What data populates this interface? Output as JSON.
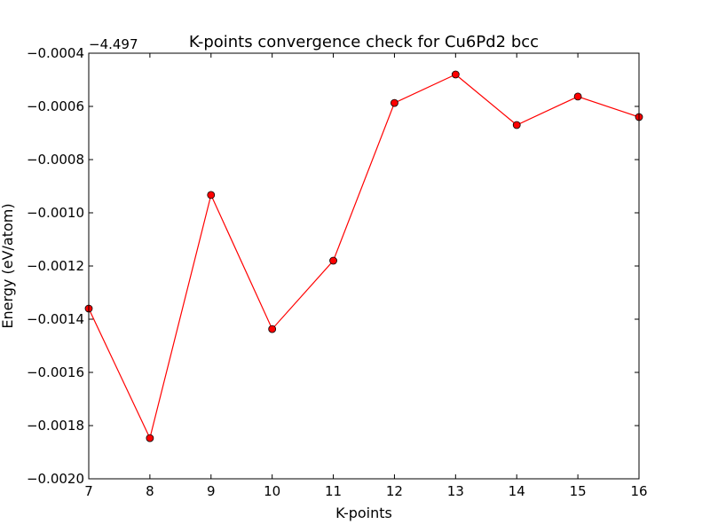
{
  "chart_data": {
    "type": "line",
    "title": "K-points convergence check for Cu6Pd2 bcc",
    "xlabel": "K-points",
    "ylabel": "Energy (eV/atom)",
    "y_offset_label": "−4.497",
    "xlim": [
      7,
      16
    ],
    "ylim": [
      -0.002,
      -0.0004
    ],
    "x_ticks": [
      7,
      8,
      9,
      10,
      11,
      12,
      13,
      14,
      15,
      16
    ],
    "x_tick_labels": [
      "7",
      "8",
      "9",
      "10",
      "11",
      "12",
      "13",
      "14",
      "15",
      "16"
    ],
    "y_ticks": [
      -0.002,
      -0.0018,
      -0.0016,
      -0.0014,
      -0.0012,
      -0.001,
      -0.0008,
      -0.0006,
      -0.0004
    ],
    "y_tick_labels": [
      "−0.0020",
      "−0.0018",
      "−0.0016",
      "−0.0014",
      "−0.0012",
      "−0.0010",
      "−0.0008",
      "−0.0006",
      "−0.0004"
    ],
    "grid": false,
    "series": [
      {
        "color": "#ff0000",
        "marker": "circle",
        "x": [
          7,
          8,
          9,
          10,
          11,
          12,
          13,
          14,
          15,
          16
        ],
        "y": [
          -0.00136,
          -0.001847,
          -0.000933,
          -0.001437,
          -0.00118,
          -0.000587,
          -0.00048,
          -0.00067,
          -0.000563,
          -0.00064
        ]
      }
    ]
  }
}
